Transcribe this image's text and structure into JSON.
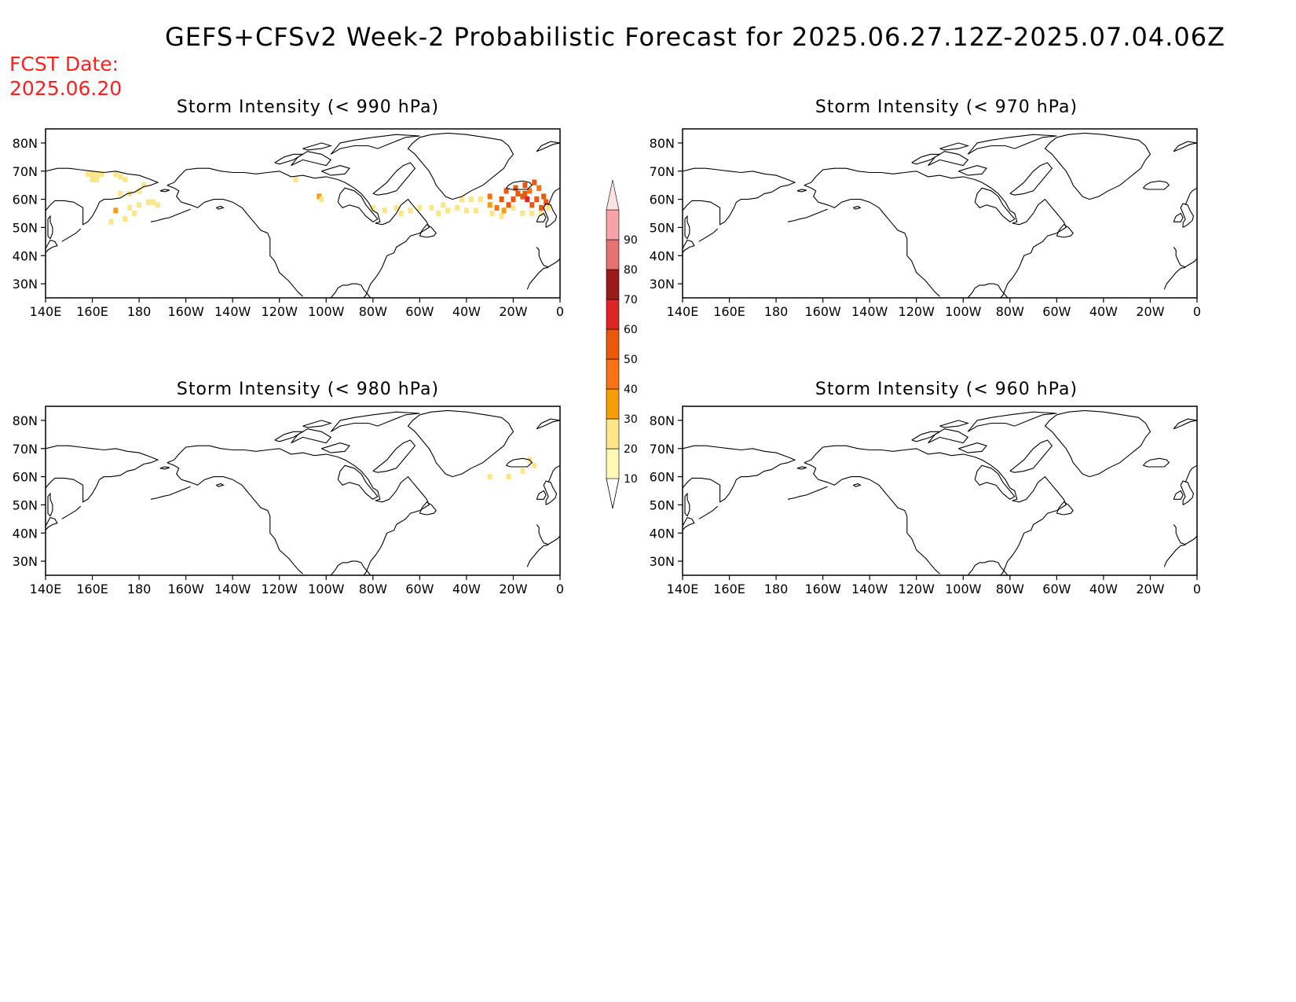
{
  "title": "GEFS+CFSv2 Week-2 Probabilistic Forecast for 2025.06.27.12Z-2025.07.04.06Z",
  "fcst_date_label": "FCST Date:",
  "fcst_date": "2025.06.20",
  "panels": [
    {
      "id": "p990",
      "title": "Storm Intensity (< 990 hPa)"
    },
    {
      "id": "p970",
      "title": "Storm Intensity (< 970 hPa)"
    },
    {
      "id": "p980",
      "title": "Storm Intensity (< 980 hPa)"
    },
    {
      "id": "p960",
      "title": "Storm Intensity (< 960 hPa)"
    }
  ],
  "lon_ticks": [
    "140E",
    "160E",
    "180",
    "160W",
    "140W",
    "120W",
    "100W",
    "80W",
    "60W",
    "40W",
    "20W",
    "0"
  ],
  "lat_ticks": [
    "80N",
    "70N",
    "60N",
    "50N",
    "40N",
    "30N"
  ],
  "colorbar": {
    "levels": [
      "10",
      "20",
      "30",
      "40",
      "50",
      "60",
      "70",
      "80",
      "90"
    ],
    "colors": [
      "#fff9b8",
      "#fde68a",
      "#f59e0b",
      "#f97316",
      "#ea580c",
      "#dc2626",
      "#991b1b",
      "#e57373",
      "#f4a3a8",
      "#fde2e4"
    ]
  },
  "probability_cells": {
    "p990": [
      [
        158,
        69,
        1
      ],
      [
        160,
        69,
        1
      ],
      [
        162,
        69,
        1
      ],
      [
        164,
        69,
        1
      ],
      [
        170,
        69,
        1
      ],
      [
        172,
        68,
        1
      ],
      [
        160,
        67,
        1
      ],
      [
        162,
        67,
        1
      ],
      [
        174,
        67,
        1
      ],
      [
        172,
        62,
        1
      ],
      [
        176,
        62,
        1
      ],
      [
        180,
        63,
        1
      ],
      [
        182,
        65,
        1
      ],
      [
        184,
        59,
        1
      ],
      [
        186,
        59,
        1
      ],
      [
        188,
        58,
        1
      ],
      [
        180,
        58,
        1
      ],
      [
        176,
        57,
        1
      ],
      [
        170,
        56,
        2
      ],
      [
        178,
        55,
        1
      ],
      [
        174,
        53,
        1
      ],
      [
        168,
        52,
        1
      ],
      [
        247,
        67,
        1
      ],
      [
        257,
        61,
        2
      ],
      [
        258,
        60,
        1
      ],
      [
        280,
        57,
        1
      ],
      [
        285,
        56,
        1
      ],
      [
        290,
        57,
        1
      ],
      [
        292,
        55,
        1
      ],
      [
        296,
        56,
        1
      ],
      [
        300,
        57,
        1
      ],
      [
        305,
        57,
        1
      ],
      [
        308,
        55,
        1
      ],
      [
        312,
        56,
        1
      ],
      [
        316,
        57,
        1
      ],
      [
        320,
        56,
        1
      ],
      [
        324,
        56,
        1
      ],
      [
        310,
        58,
        1
      ],
      [
        318,
        60,
        1
      ],
      [
        322,
        60,
        1
      ],
      [
        326,
        60,
        1
      ],
      [
        330,
        58,
        2
      ],
      [
        333,
        57,
        3
      ],
      [
        336,
        56,
        2
      ],
      [
        338,
        58,
        4
      ],
      [
        340,
        60,
        4
      ],
      [
        342,
        62,
        4
      ],
      [
        344,
        61,
        4
      ],
      [
        346,
        60,
        5
      ],
      [
        348,
        58,
        4
      ],
      [
        350,
        60,
        4
      ],
      [
        352,
        57,
        4
      ],
      [
        354,
        59,
        4
      ],
      [
        337,
        63,
        4
      ],
      [
        341,
        64,
        4
      ],
      [
        345,
        65,
        4
      ],
      [
        349,
        66,
        4
      ],
      [
        345,
        62,
        4
      ],
      [
        347,
        63,
        3
      ],
      [
        335,
        60,
        4
      ],
      [
        330,
        61,
        3
      ],
      [
        340,
        57,
        1
      ],
      [
        344,
        55,
        1
      ],
      [
        348,
        55,
        1
      ],
      [
        352,
        55,
        1
      ],
      [
        353,
        61,
        4
      ],
      [
        351,
        64,
        3
      ],
      [
        355,
        57,
        1
      ],
      [
        335,
        54,
        1
      ],
      [
        331,
        55,
        1
      ]
    ],
    "p970": [],
    "p980": [
      [
        347,
        66,
        1
      ],
      [
        349,
        64,
        1
      ],
      [
        344,
        62,
        1
      ],
      [
        330,
        60,
        1
      ],
      [
        338,
        60,
        1
      ]
    ],
    "p960": []
  }
}
